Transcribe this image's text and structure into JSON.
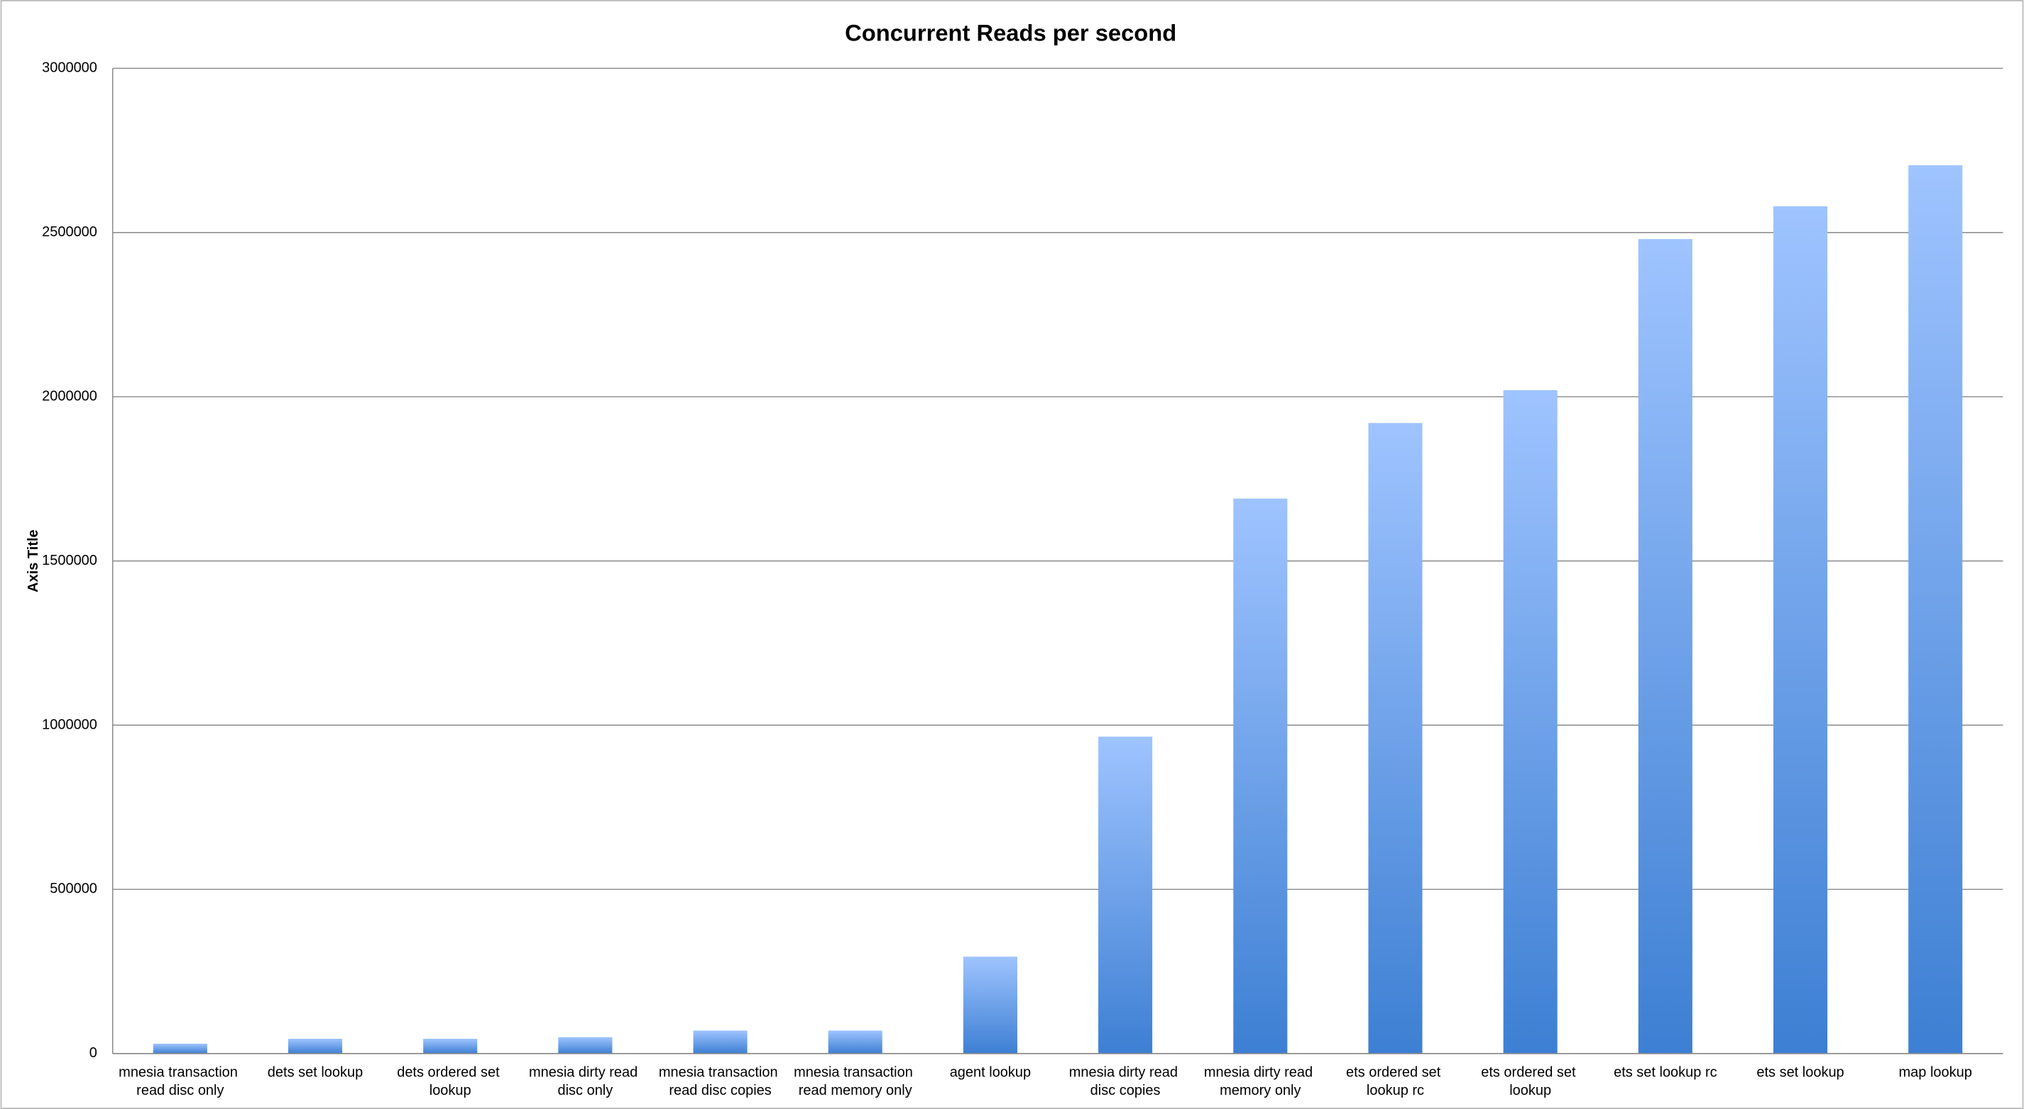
{
  "chart_data": {
    "type": "bar",
    "title": "Concurrent Reads per second",
    "y_label": "Axis Title",
    "categories": [
      "mnesia transaction read disc only",
      "dets set lookup",
      "dets ordered set lookup",
      "mnesia dirty read disc only",
      "mnesia transaction read disc copies",
      "mnesia transaction read memory only",
      "agent lookup",
      "mnesia dirty read disc copies",
      "mnesia dirty read memory only",
      "ets ordered set lookup rc",
      "ets ordered set lookup",
      "ets set lookup rc",
      "ets set lookup",
      "map lookup"
    ],
    "values": [
      30000,
      45000,
      45000,
      50000,
      70000,
      70000,
      295000,
      965000,
      1690000,
      1920000,
      2020000,
      2480000,
      2580000,
      2705000
    ],
    "color": "#3d7fd3",
    "ylim": [
      0,
      3000000
    ],
    "yticks": [
      0,
      500000,
      1000000,
      1500000,
      2000000,
      2500000,
      3000000
    ],
    "grid": true
  }
}
